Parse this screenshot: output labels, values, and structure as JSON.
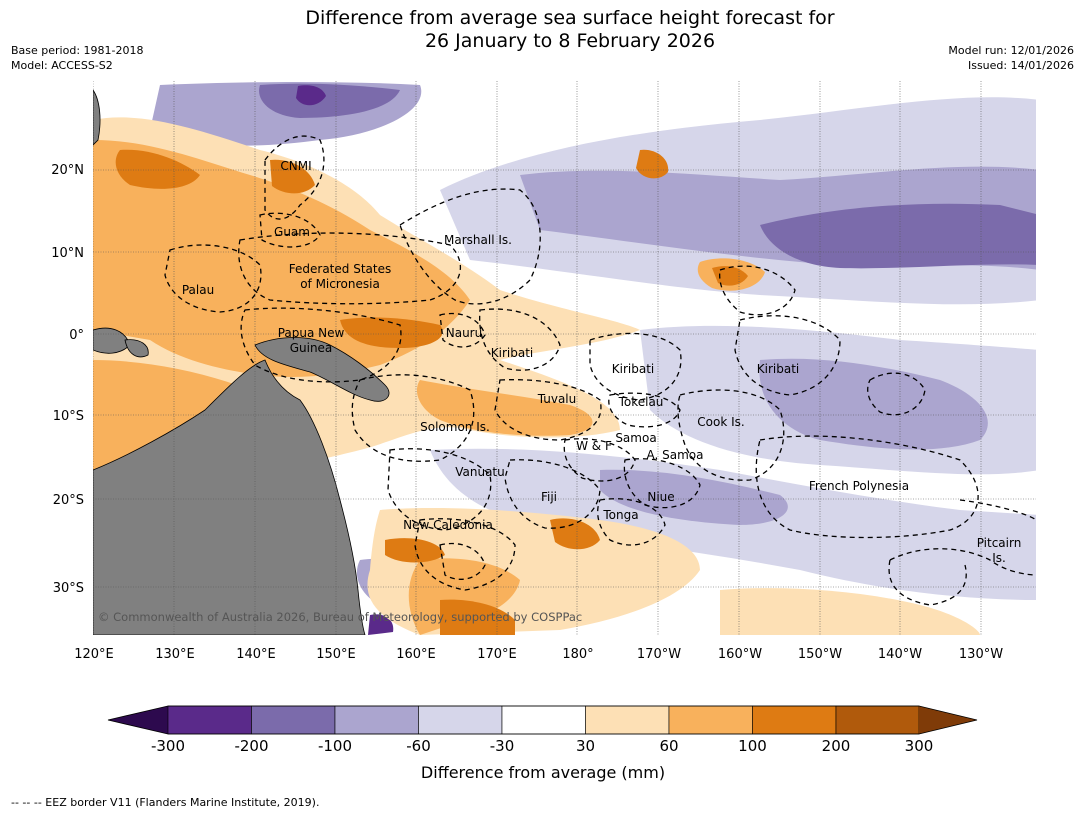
{
  "title_line1": "Difference from average sea surface height forecast for",
  "title_line2": "26 January to 8 February 2026",
  "meta_left": [
    "Base period: 1981-2018",
    "Model: ACCESS-S2"
  ],
  "meta_right": [
    "Model run: 12/01/2026",
    "Issued: 14/01/2026"
  ],
  "lon_ticks": [
    "120°E",
    "130°E",
    "140°E",
    "150°E",
    "160°E",
    "170°E",
    "180°",
    "170°W",
    "160°W",
    "150°W",
    "140°W",
    "130°W"
  ],
  "lat_ticks": [
    "20°N",
    "10°N",
    "0°",
    "10°S",
    "20°S",
    "30°S"
  ],
  "regions": [
    "CNMI",
    "Guam",
    "Marshall Is.",
    "Federated States",
    "of Micronesia",
    "Palau",
    "Papua New",
    "Guinea",
    "Nauru",
    "Kiribati",
    "Kiribati",
    "Kiribati",
    "Tuvalu",
    "Tokelau",
    "Cook Is.",
    "Solomon Is.",
    "W & F",
    "Samoa",
    "A. Samoa",
    "Vanuatu",
    "Fiji",
    "Niue",
    "French Polynesia",
    "Tonga",
    "New Caledonia",
    "Pitcairn",
    "Is."
  ],
  "copyright": "© Commonwealth of Australia 2026, Bureau of Meteorology, supported by COSPPac",
  "colorbar": {
    "label": "Difference from average (mm)",
    "ticks": [
      "-300",
      "-200",
      "-100",
      "-60",
      "-30",
      "30",
      "60",
      "100",
      "200",
      "300"
    ],
    "colors": [
      "#2d0a4e",
      "#5a2a8a",
      "#7b6bab",
      "#aba5cf",
      "#d6d6ea",
      "#ffffff",
      "#fde0b5",
      "#f8b15c",
      "#de7b13",
      "#b05a0c",
      "#7f3b08"
    ]
  },
  "footer": "--  --  -- EEZ border V11 (Flanders Marine Institute, 2019)."
}
